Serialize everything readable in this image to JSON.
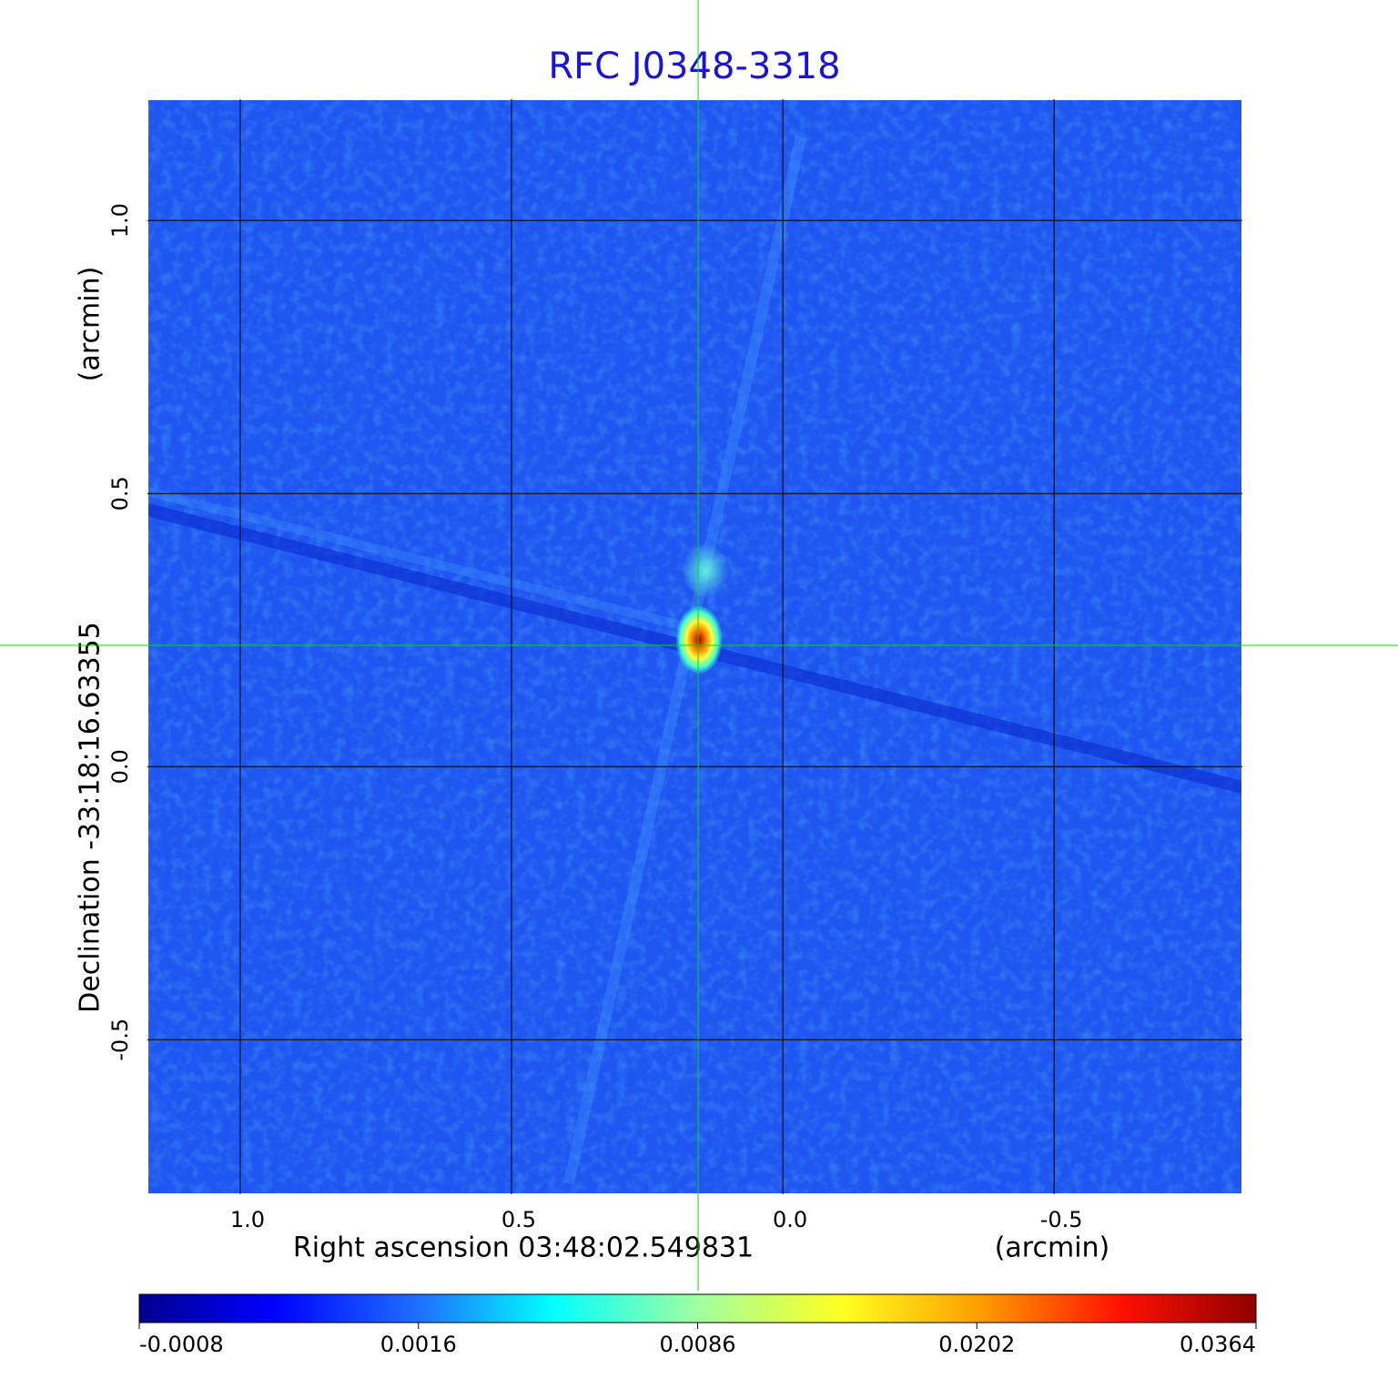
{
  "chart_data": {
    "type": "image",
    "title": "RFC J0348-3318",
    "x_label": "Right ascension  03:48:02.549831",
    "x_unit": "(arcmin)",
    "y_label": "Declination  -33:18:16.63355",
    "y_unit": "(arcmin)",
    "xlim": [
      1.171,
      -0.847
    ],
    "ylim": [
      -0.783,
      1.222
    ],
    "xticks": [
      {
        "value": 1,
        "label": "1.0"
      },
      0.5,
      {
        "value": 0,
        "label": "0.0"
      },
      -0.5
    ],
    "yticks": [
      {
        "value": 1,
        "label": "1.0"
      },
      0.5,
      {
        "value": 0,
        "label": "0.0"
      },
      -0.5
    ],
    "grid": true,
    "crosshair": {
      "x": 0.156,
      "y": 0.222,
      "color": "#00e000"
    },
    "colorbar_ticks": [
      -0.0008,
      0.0016,
      0.0086,
      0.0202,
      0.0364
    ],
    "title_color": "#1a14d6"
  }
}
